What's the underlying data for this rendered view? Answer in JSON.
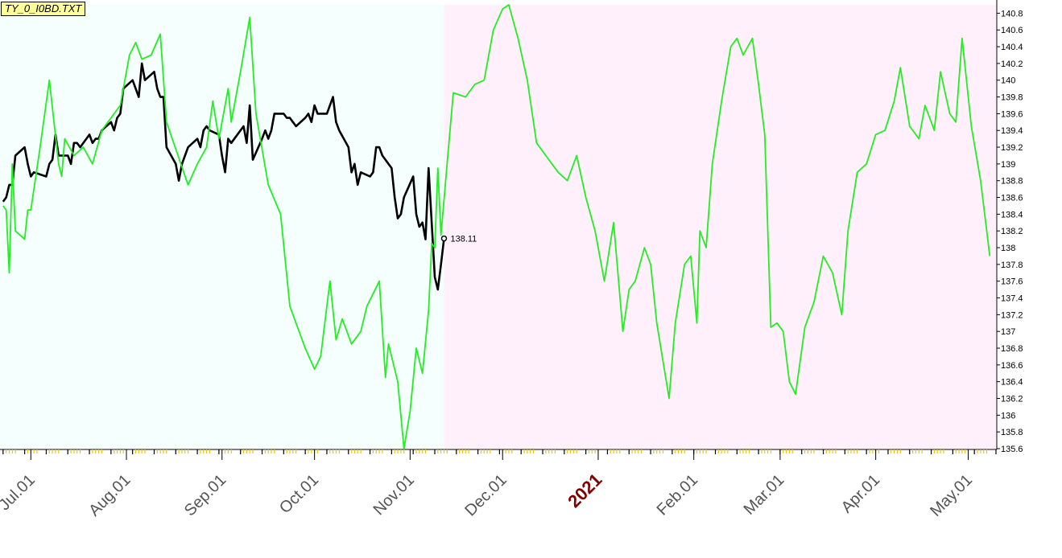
{
  "file_label": "TY_0_I0BD.TXT",
  "chart_data": {
    "type": "line",
    "title": "",
    "xlabel": "",
    "ylabel": "",
    "ylim": [
      135.6,
      140.9
    ],
    "y_ticks": [
      140.8,
      140.6,
      140.4,
      140.2,
      140,
      139.8,
      139.6,
      139.4,
      139.2,
      139,
      138.8,
      138.6,
      138.4,
      138.2,
      138,
      137.8,
      137.6,
      137.4,
      137.2,
      137,
      136.8,
      136.6,
      136.4,
      136.2,
      136,
      135.8,
      135.6
    ],
    "x_tick_labels": [
      {
        "label": "Jul.01",
        "x": "2020-07-01",
        "highlight": false
      },
      {
        "label": "Aug.01",
        "x": "2020-08-01",
        "highlight": false
      },
      {
        "label": "Sep.01",
        "x": "2020-09-01",
        "highlight": false
      },
      {
        "label": "Oct.01",
        "x": "2020-10-01",
        "highlight": false
      },
      {
        "label": "Nov.01",
        "x": "2020-11-01",
        "highlight": false
      },
      {
        "label": "Dec.01",
        "x": "2020-12-01",
        "highlight": false
      },
      {
        "label": "2021",
        "x": "2021-01-01",
        "highlight": true
      },
      {
        "label": "Feb.01",
        "x": "2021-02-01",
        "highlight": false
      },
      {
        "label": "Mar.01",
        "x": "2021-03-01",
        "highlight": false
      },
      {
        "label": "Apr.01",
        "x": "2021-04-01",
        "highlight": false
      },
      {
        "label": "May.01",
        "x": "2021-05-01",
        "highlight": false
      }
    ],
    "xlim": [
      "2020-06-21",
      "2021-05-10"
    ],
    "regions": [
      {
        "from": "2020-06-21",
        "to": "2020-11-12",
        "color": "#f5fffe"
      },
      {
        "from": "2020-11-12",
        "to": "2021-05-10",
        "color": "#fff0fb"
      }
    ],
    "last_value_label": {
      "x": "2020-11-12",
      "y": 138.11,
      "text": "138.11"
    },
    "grid": false,
    "legend": "none",
    "colors": {
      "actual": "#000000",
      "projection": "#22ee22",
      "axis": "#000000",
      "tick_minor": "#e8c800",
      "year_label": "#800000",
      "date_label": "#555555"
    },
    "series": [
      {
        "color": "#000000",
        "points": [
          [
            "2020-06-22",
            138.55
          ],
          [
            "2020-06-23",
            138.6
          ],
          [
            "2020-06-24",
            138.75
          ],
          [
            "2020-06-25",
            138.75
          ],
          [
            "2020-06-26",
            139.1
          ],
          [
            "2020-06-29",
            139.2
          ],
          [
            "2020-06-30",
            139.0
          ],
          [
            "2020-07-01",
            138.85
          ],
          [
            "2020-07-02",
            138.9
          ],
          [
            "2020-07-06",
            138.85
          ],
          [
            "2020-07-07",
            139.0
          ],
          [
            "2020-07-08",
            139.05
          ],
          [
            "2020-07-09",
            139.35
          ],
          [
            "2020-07-10",
            139.1
          ],
          [
            "2020-07-13",
            139.1
          ],
          [
            "2020-07-14",
            139.0
          ],
          [
            "2020-07-15",
            139.25
          ],
          [
            "2020-07-16",
            139.25
          ],
          [
            "2020-07-17",
            139.2
          ],
          [
            "2020-07-20",
            139.35
          ],
          [
            "2020-07-21",
            139.25
          ],
          [
            "2020-07-22",
            139.3
          ],
          [
            "2020-07-23",
            139.3
          ],
          [
            "2020-07-24",
            139.4
          ],
          [
            "2020-07-27",
            139.5
          ],
          [
            "2020-07-28",
            139.4
          ],
          [
            "2020-07-29",
            139.55
          ],
          [
            "2020-07-30",
            139.6
          ],
          [
            "2020-07-31",
            139.9
          ],
          [
            "2020-08-03",
            140.0
          ],
          [
            "2020-08-04",
            139.9
          ],
          [
            "2020-08-05",
            139.8
          ],
          [
            "2020-08-06",
            140.2
          ],
          [
            "2020-08-07",
            140.0
          ],
          [
            "2020-08-10",
            140.1
          ],
          [
            "2020-08-11",
            139.9
          ],
          [
            "2020-08-12",
            139.8
          ],
          [
            "2020-08-13",
            139.8
          ],
          [
            "2020-08-14",
            139.2
          ],
          [
            "2020-08-17",
            139.0
          ],
          [
            "2020-08-18",
            138.8
          ],
          [
            "2020-08-19",
            139.0
          ],
          [
            "2020-08-20",
            139.1
          ],
          [
            "2020-08-21",
            139.2
          ],
          [
            "2020-08-24",
            139.3
          ],
          [
            "2020-08-25",
            139.2
          ],
          [
            "2020-08-26",
            139.4
          ],
          [
            "2020-08-27",
            139.45
          ],
          [
            "2020-08-28",
            139.4
          ],
          [
            "2020-08-31",
            139.35
          ],
          [
            "2020-09-01",
            139.1
          ],
          [
            "2020-09-02",
            138.9
          ],
          [
            "2020-09-03",
            139.3
          ],
          [
            "2020-09-04",
            139.25
          ],
          [
            "2020-09-08",
            139.45
          ],
          [
            "2020-09-09",
            139.25
          ],
          [
            "2020-09-10",
            139.7
          ],
          [
            "2020-09-11",
            139.05
          ],
          [
            "2020-09-14",
            139.3
          ],
          [
            "2020-09-15",
            139.4
          ],
          [
            "2020-09-16",
            139.3
          ],
          [
            "2020-09-17",
            139.4
          ],
          [
            "2020-09-18",
            139.6
          ],
          [
            "2020-09-21",
            139.6
          ],
          [
            "2020-09-22",
            139.55
          ],
          [
            "2020-09-23",
            139.55
          ],
          [
            "2020-09-24",
            139.5
          ],
          [
            "2020-09-25",
            139.45
          ],
          [
            "2020-09-28",
            139.55
          ],
          [
            "2020-09-29",
            139.6
          ],
          [
            "2020-09-30",
            139.5
          ],
          [
            "2020-10-01",
            139.7
          ],
          [
            "2020-10-02",
            139.6
          ],
          [
            "2020-10-05",
            139.6
          ],
          [
            "2020-10-06",
            139.7
          ],
          [
            "2020-10-07",
            139.8
          ],
          [
            "2020-10-08",
            139.5
          ],
          [
            "2020-10-09",
            139.4
          ],
          [
            "2020-10-12",
            139.2
          ],
          [
            "2020-10-13",
            138.9
          ],
          [
            "2020-10-14",
            139.0
          ],
          [
            "2020-10-15",
            138.75
          ],
          [
            "2020-10-16",
            138.9
          ],
          [
            "2020-10-19",
            138.85
          ],
          [
            "2020-10-20",
            138.9
          ],
          [
            "2020-10-21",
            139.2
          ],
          [
            "2020-10-22",
            139.2
          ],
          [
            "2020-10-23",
            139.1
          ],
          [
            "2020-10-26",
            138.95
          ],
          [
            "2020-10-27",
            138.6
          ],
          [
            "2020-10-28",
            138.35
          ],
          [
            "2020-10-29",
            138.4
          ],
          [
            "2020-10-30",
            138.6
          ],
          [
            "2020-11-02",
            138.85
          ],
          [
            "2020-11-03",
            138.4
          ],
          [
            "2020-11-04",
            138.25
          ],
          [
            "2020-11-05",
            138.3
          ],
          [
            "2020-11-06",
            138.1
          ],
          [
            "2020-11-07",
            138.95
          ],
          [
            "2020-11-09",
            137.65
          ],
          [
            "2020-11-10",
            137.5
          ],
          [
            "2020-11-11",
            137.8
          ],
          [
            "2020-11-12",
            138.11
          ]
        ]
      },
      {
        "color": "#22ee22",
        "points": [
          [
            "2020-06-22",
            138.5
          ],
          [
            "2020-06-23",
            138.45
          ],
          [
            "2020-06-24",
            137.7
          ],
          [
            "2020-06-25",
            139.0
          ],
          [
            "2020-06-26",
            138.2
          ],
          [
            "2020-06-29",
            138.1
          ],
          [
            "2020-06-30",
            138.45
          ],
          [
            "2020-07-01",
            138.45
          ],
          [
            "2020-07-04",
            139.2
          ],
          [
            "2020-07-07",
            140.0
          ],
          [
            "2020-07-10",
            139.0
          ],
          [
            "2020-07-11",
            138.85
          ],
          [
            "2020-07-12",
            139.3
          ],
          [
            "2020-07-15",
            139.1
          ],
          [
            "2020-07-18",
            139.2
          ],
          [
            "2020-07-21",
            139.0
          ],
          [
            "2020-07-24",
            139.4
          ],
          [
            "2020-07-30",
            139.7
          ],
          [
            "2020-08-02",
            140.3
          ],
          [
            "2020-08-04",
            140.45
          ],
          [
            "2020-08-06",
            140.25
          ],
          [
            "2020-08-09",
            140.3
          ],
          [
            "2020-08-12",
            140.55
          ],
          [
            "2020-08-14",
            139.5
          ],
          [
            "2020-08-21",
            138.75
          ],
          [
            "2020-08-24",
            139.0
          ],
          [
            "2020-08-27",
            139.2
          ],
          [
            "2020-08-29",
            139.75
          ],
          [
            "2020-08-31",
            139.3
          ],
          [
            "2020-09-03",
            139.9
          ],
          [
            "2020-09-04",
            139.5
          ],
          [
            "2020-09-07",
            140.1
          ],
          [
            "2020-09-10",
            140.75
          ],
          [
            "2020-09-12",
            139.6
          ],
          [
            "2020-09-16",
            138.75
          ],
          [
            "2020-09-20",
            138.4
          ],
          [
            "2020-09-23",
            137.3
          ],
          [
            "2020-09-28",
            136.8
          ],
          [
            "2020-10-01",
            136.55
          ],
          [
            "2020-10-03",
            136.7
          ],
          [
            "2020-10-06",
            137.6
          ],
          [
            "2020-10-08",
            136.9
          ],
          [
            "2020-10-10",
            137.15
          ],
          [
            "2020-10-13",
            136.85
          ],
          [
            "2020-10-16",
            137.0
          ],
          [
            "2020-10-18",
            137.3
          ],
          [
            "2020-10-22",
            137.6
          ],
          [
            "2020-10-24",
            136.45
          ],
          [
            "2020-10-25",
            136.85
          ],
          [
            "2020-10-28",
            136.4
          ],
          [
            "2020-10-30",
            135.6
          ],
          [
            "2020-11-01",
            136.05
          ],
          [
            "2020-11-03",
            136.8
          ],
          [
            "2020-11-05",
            136.5
          ],
          [
            "2020-11-07",
            137.25
          ],
          [
            "2020-11-08",
            138.05
          ],
          [
            "2020-11-09",
            138.0
          ],
          [
            "2020-11-10",
            138.95
          ],
          [
            "2020-11-11",
            138.15
          ],
          [
            "2020-11-13",
            139.0
          ],
          [
            "2020-11-15",
            139.85
          ],
          [
            "2020-11-19",
            139.8
          ],
          [
            "2020-11-22",
            139.95
          ],
          [
            "2020-11-25",
            140.0
          ],
          [
            "2020-11-28",
            140.6
          ],
          [
            "2020-12-01",
            140.85
          ],
          [
            "2020-12-03",
            140.9
          ],
          [
            "2020-12-06",
            140.5
          ],
          [
            "2020-12-09",
            140.0
          ],
          [
            "2020-12-12",
            139.25
          ],
          [
            "2020-12-15",
            139.1
          ],
          [
            "2020-12-19",
            138.9
          ],
          [
            "2020-12-22",
            138.8
          ],
          [
            "2020-12-25",
            139.1
          ],
          [
            "2020-12-28",
            138.6
          ],
          [
            "2020-12-31",
            138.2
          ],
          [
            "2021-01-03",
            137.6
          ],
          [
            "2021-01-06",
            138.3
          ],
          [
            "2021-01-09",
            137.0
          ],
          [
            "2021-01-11",
            137.5
          ],
          [
            "2021-01-13",
            137.6
          ],
          [
            "2021-01-16",
            138.0
          ],
          [
            "2021-01-18",
            137.8
          ],
          [
            "2021-01-20",
            137.1
          ],
          [
            "2021-01-24",
            136.2
          ],
          [
            "2021-01-26",
            137.1
          ],
          [
            "2021-01-29",
            137.8
          ],
          [
            "2021-01-31",
            137.9
          ],
          [
            "2021-02-02",
            137.1
          ],
          [
            "2021-02-03",
            138.2
          ],
          [
            "2021-02-05",
            138.0
          ],
          [
            "2021-02-07",
            139.0
          ],
          [
            "2021-02-10",
            139.75
          ],
          [
            "2021-02-13",
            140.4
          ],
          [
            "2021-02-15",
            140.5
          ],
          [
            "2021-02-17",
            140.3
          ],
          [
            "2021-02-20",
            140.5
          ],
          [
            "2021-02-22",
            139.95
          ],
          [
            "2021-02-24",
            139.35
          ],
          [
            "2021-02-26",
            137.05
          ],
          [
            "2021-02-28",
            137.1
          ],
          [
            "2021-03-02",
            137.0
          ],
          [
            "2021-03-04",
            136.4
          ],
          [
            "2021-03-06",
            136.25
          ],
          [
            "2021-03-09",
            137.05
          ],
          [
            "2021-03-12",
            137.35
          ],
          [
            "2021-03-15",
            137.9
          ],
          [
            "2021-03-18",
            137.7
          ],
          [
            "2021-03-21",
            137.2
          ],
          [
            "2021-03-23",
            138.2
          ],
          [
            "2021-03-26",
            138.9
          ],
          [
            "2021-03-29",
            139.0
          ],
          [
            "2021-04-01",
            139.35
          ],
          [
            "2021-04-04",
            139.4
          ],
          [
            "2021-04-07",
            139.75
          ],
          [
            "2021-04-09",
            140.15
          ],
          [
            "2021-04-12",
            139.45
          ],
          [
            "2021-04-15",
            139.3
          ],
          [
            "2021-04-17",
            139.7
          ],
          [
            "2021-04-20",
            139.4
          ],
          [
            "2021-04-22",
            140.1
          ],
          [
            "2021-04-25",
            139.6
          ],
          [
            "2021-04-27",
            139.5
          ],
          [
            "2021-04-29",
            140.5
          ],
          [
            "2021-05-02",
            139.45
          ],
          [
            "2021-05-05",
            138.8
          ],
          [
            "2021-05-08",
            137.9
          ]
        ]
      }
    ]
  }
}
